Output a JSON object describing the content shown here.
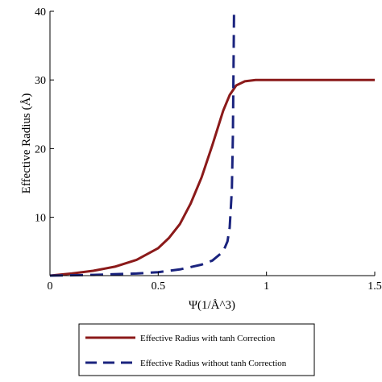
{
  "chart_data": {
    "type": "line",
    "xlabel": "Ψ(1/Å^3)",
    "ylabel": "Effective Radius (Å)",
    "xlim": [
      0,
      1.5
    ],
    "ylim": [
      1.5,
      40
    ],
    "xticks": [
      0,
      0.5,
      1,
      1.5
    ],
    "xtick_labels": [
      "0",
      "0.5",
      "1",
      "1.5"
    ],
    "yticks": [
      10,
      20,
      30,
      40
    ],
    "ytick_labels": [
      "10",
      "20",
      "30",
      "40"
    ],
    "grid": false,
    "legend_position": "bottom",
    "series": [
      {
        "name": "Effective Radius with tanh Correction",
        "color": "#8b1a1a",
        "style": "solid",
        "x": [
          0,
          0.1,
          0.2,
          0.3,
          0.4,
          0.5,
          0.55,
          0.6,
          0.65,
          0.7,
          0.75,
          0.8,
          0.83,
          0.86,
          0.9,
          0.95,
          1.0,
          1.1,
          1.2,
          1.3,
          1.4,
          1.5
        ],
        "y": [
          1.5,
          1.8,
          2.2,
          2.8,
          3.8,
          5.5,
          7.0,
          9.0,
          12.0,
          15.8,
          20.5,
          25.5,
          27.8,
          29.2,
          29.8,
          30.0,
          30.0,
          30.0,
          30.0,
          30.0,
          30.0,
          30.0
        ]
      },
      {
        "name": "Effective Radius without tanh Correction",
        "color": "#1a237e",
        "style": "dashed",
        "x": [
          0,
          0.2,
          0.4,
          0.5,
          0.6,
          0.7,
          0.75,
          0.8,
          0.82,
          0.83,
          0.84,
          0.845,
          0.85
        ],
        "y": [
          1.5,
          1.6,
          1.8,
          2.0,
          2.4,
          3.1,
          3.7,
          5.0,
          6.5,
          8.5,
          14.0,
          22.0,
          40.0
        ]
      }
    ]
  }
}
